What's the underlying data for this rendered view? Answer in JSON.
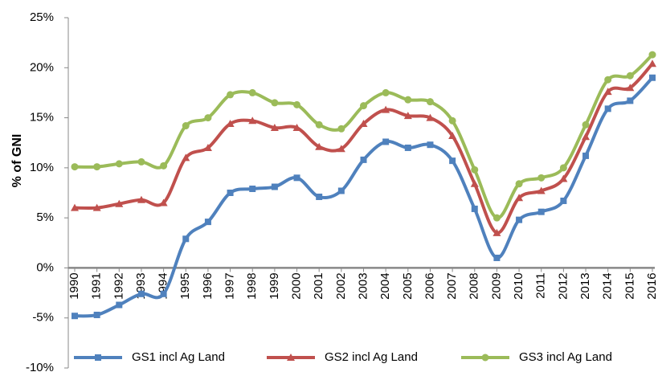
{
  "chart_data": {
    "type": "line",
    "y_label": "% of GNI",
    "categories": [
      "1990",
      "1991",
      "1992",
      "1993",
      "1994",
      "1995",
      "1996",
      "1997",
      "1998",
      "1999",
      "2000",
      "2001",
      "2002",
      "2003",
      "2004",
      "2005",
      "2006",
      "2007",
      "2008",
      "2009",
      "2010",
      "2011",
      "2012",
      "2013",
      "2014",
      "2015",
      "2016"
    ],
    "series": [
      {
        "name": "GS1 incl Ag Land",
        "color": "#4f81bd",
        "marker": "square",
        "values": [
          -4.8,
          -4.7,
          -3.7,
          -2.6,
          -2.6,
          2.9,
          4.6,
          7.5,
          7.9,
          8.1,
          9.0,
          7.1,
          7.7,
          10.8,
          12.6,
          12.0,
          12.3,
          10.7,
          5.9,
          1.0,
          4.8,
          5.6,
          6.7,
          11.2,
          15.9,
          16.7,
          19.0
        ]
      },
      {
        "name": "GS2 incl Ag Land",
        "color": "#c0504d",
        "marker": "triangle",
        "values": [
          6.0,
          6.0,
          6.4,
          6.8,
          6.5,
          11.0,
          12.0,
          14.4,
          14.7,
          14.0,
          14.0,
          12.1,
          11.9,
          14.4,
          15.8,
          15.2,
          15.0,
          13.2,
          8.4,
          3.5,
          7.0,
          7.7,
          8.9,
          13.1,
          17.6,
          18.0,
          20.4
        ]
      },
      {
        "name": "GS3 incl Ag Land",
        "color": "#9bbb59",
        "marker": "circle",
        "values": [
          10.1,
          10.1,
          10.4,
          10.6,
          10.2,
          14.2,
          15.0,
          17.3,
          17.5,
          16.5,
          16.3,
          14.3,
          13.9,
          16.2,
          17.5,
          16.8,
          16.6,
          14.7,
          9.8,
          5.0,
          8.4,
          9.0,
          10.0,
          14.3,
          18.8,
          19.2,
          21.3
        ]
      }
    ],
    "ylim": [
      -10,
      25
    ],
    "yticks": [
      {
        "value": -10,
        "label": "-10%"
      },
      {
        "value": -5,
        "label": "-5%"
      },
      {
        "value": 0,
        "label": "0%"
      },
      {
        "value": 5,
        "label": "5%"
      },
      {
        "value": 10,
        "label": "10%"
      },
      {
        "value": 15,
        "label": "15%"
      },
      {
        "value": 20,
        "label": "20%"
      },
      {
        "value": 25,
        "label": "25%"
      }
    ],
    "grid": false,
    "legend": "bottom"
  }
}
